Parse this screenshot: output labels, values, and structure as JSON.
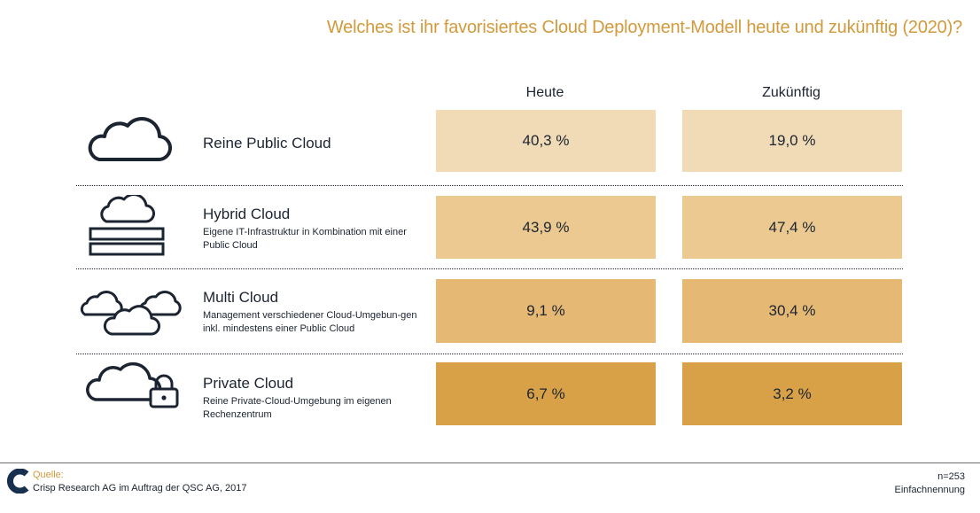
{
  "title": "Welches ist ihr favorisiertes Cloud Deployment-Modell heute und zukünftig (2020)?",
  "colors": {
    "accent": "#d19a3c",
    "text": "#1b2430",
    "shades": [
      "#f1dbb7",
      "#ebc991",
      "#e5b874",
      "#d9a147"
    ]
  },
  "chart_data": {
    "type": "table",
    "title": "Welches ist ihr favorisiertes Cloud Deployment-Modell heute und zukünftig (2020)?",
    "columns": [
      "Heute",
      "Zukünftig"
    ],
    "rows": [
      {
        "icon": "cloud-icon",
        "name": "Reine Public Cloud",
        "desc": "",
        "values": [
          "40,3 %",
          "19,0 %"
        ],
        "shade": "#f1dbb7"
      },
      {
        "icon": "hybrid-cloud-icon",
        "name": "Hybrid Cloud",
        "desc": "Eigene IT-Infrastruktur in Kombination mit einer Public Cloud",
        "values": [
          "43,9 %",
          "47,4 %"
        ],
        "shade": "#ebc991"
      },
      {
        "icon": "multi-cloud-icon",
        "name": "Multi Cloud",
        "desc": "Management verschiedener Cloud-Umgebun-gen inkl. mindestens einer Public Cloud",
        "values": [
          "9,1 %",
          "30,4 %"
        ],
        "shade": "#e5b874"
      },
      {
        "icon": "private-cloud-lock-icon",
        "name": "Private Cloud",
        "desc": "Reine Private-Cloud-Umgebung im eigenen Rechenzentrum",
        "values": [
          "6,7 %",
          "3,2 %"
        ],
        "shade": "#d9a147"
      }
    ]
  },
  "footer": {
    "source_label": "Quelle:",
    "source_text": "Crisp Research AG im Auftrag der QSC AG, 2017",
    "n": "n=253",
    "note": "Einfachnennung"
  }
}
